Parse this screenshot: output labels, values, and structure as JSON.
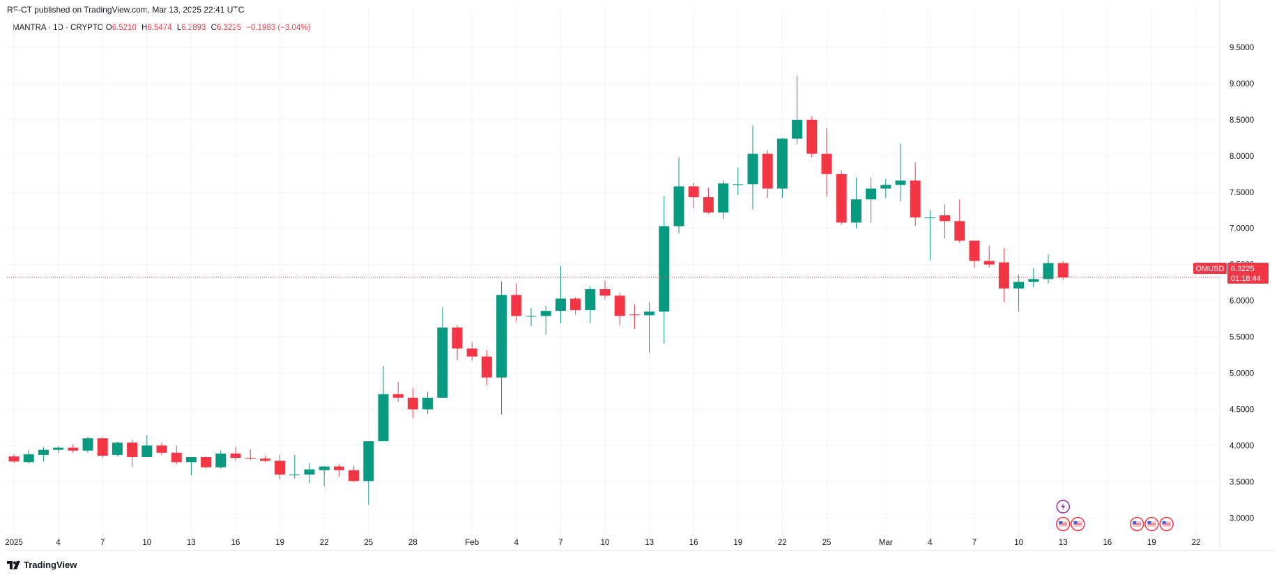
{
  "header": {
    "publisher_text": "RF-CT published on TradingView.com, Mar 13, 2025 22:41 UTC"
  },
  "legend": {
    "symbol_line": "MANTRA · 1D · CRYPTO",
    "open_label": "O",
    "open_value": "6.5210",
    "high_label": "H",
    "high_value": "6.5474",
    "low_label": "L",
    "low_value": "6.2893",
    "close_label": "C",
    "close_value": "6.3225",
    "change": "−0.1983 (−3.04%)"
  },
  "price_tag": {
    "symbol": "OMUSD",
    "price": "6.3225",
    "countdown": "01:18:44",
    "color": "#f23645"
  },
  "footer": {
    "brand": "TradingView"
  },
  "colors": {
    "up": "#089981",
    "down": "#f23645",
    "grid": "#f0f3fa"
  },
  "chart_data": {
    "type": "candlestick",
    "ylim": [
      2.55,
      9.75
    ],
    "y_ticks": [
      "3.0000",
      "3.5000",
      "4.0000",
      "4.5000",
      "5.0000",
      "5.5000",
      "6.0000",
      "6.5000",
      "7.0000",
      "7.5000",
      "8.0000",
      "8.5000",
      "9.0000",
      "9.5000"
    ],
    "x_tick_labels": [
      {
        "day": 0,
        "label": "2025"
      },
      {
        "day": 3,
        "label": "4"
      },
      {
        "day": 6,
        "label": "7"
      },
      {
        "day": 9,
        "label": "10"
      },
      {
        "day": 12,
        "label": "13"
      },
      {
        "day": 15,
        "label": "16"
      },
      {
        "day": 18,
        "label": "19"
      },
      {
        "day": 21,
        "label": "22"
      },
      {
        "day": 24,
        "label": "25"
      },
      {
        "day": 27,
        "label": "28"
      },
      {
        "day": 31,
        "label": "Feb"
      },
      {
        "day": 34,
        "label": "4"
      },
      {
        "day": 37,
        "label": "7"
      },
      {
        "day": 40,
        "label": "10"
      },
      {
        "day": 43,
        "label": "13"
      },
      {
        "day": 46,
        "label": "16"
      },
      {
        "day": 49,
        "label": "19"
      },
      {
        "day": 52,
        "label": "22"
      },
      {
        "day": 55,
        "label": "25"
      },
      {
        "day": 59,
        "label": "Mar"
      },
      {
        "day": 62,
        "label": "4"
      },
      {
        "day": 65,
        "label": "7"
      },
      {
        "day": 68,
        "label": "10"
      },
      {
        "day": 71,
        "label": "13"
      },
      {
        "day": 74,
        "label": "16"
      },
      {
        "day": 77,
        "label": "19"
      },
      {
        "day": 80,
        "label": "22"
      }
    ],
    "candles": [
      {
        "day": 0,
        "o": 3.85,
        "h": 3.88,
        "l": 3.76,
        "c": 3.78
      },
      {
        "day": 1,
        "o": 3.77,
        "h": 3.94,
        "l": 3.75,
        "c": 3.88
      },
      {
        "day": 2,
        "o": 3.87,
        "h": 3.98,
        "l": 3.78,
        "c": 3.94
      },
      {
        "day": 3,
        "o": 3.94,
        "h": 3.99,
        "l": 3.9,
        "c": 3.97
      },
      {
        "day": 4,
        "o": 3.97,
        "h": 4.02,
        "l": 3.9,
        "c": 3.93
      },
      {
        "day": 5,
        "o": 3.93,
        "h": 4.12,
        "l": 3.9,
        "c": 4.1
      },
      {
        "day": 6,
        "o": 4.1,
        "h": 4.12,
        "l": 3.83,
        "c": 3.86
      },
      {
        "day": 7,
        "o": 3.87,
        "h": 4.05,
        "l": 3.85,
        "c": 4.04
      },
      {
        "day": 8,
        "o": 4.04,
        "h": 4.08,
        "l": 3.7,
        "c": 3.84
      },
      {
        "day": 9,
        "o": 3.84,
        "h": 4.14,
        "l": 3.84,
        "c": 4.0
      },
      {
        "day": 10,
        "o": 4.0,
        "h": 4.04,
        "l": 3.87,
        "c": 3.9
      },
      {
        "day": 11,
        "o": 3.9,
        "h": 4.0,
        "l": 3.74,
        "c": 3.77
      },
      {
        "day": 12,
        "o": 3.77,
        "h": 3.84,
        "l": 3.59,
        "c": 3.84
      },
      {
        "day": 13,
        "o": 3.84,
        "h": 3.85,
        "l": 3.68,
        "c": 3.7
      },
      {
        "day": 14,
        "o": 3.7,
        "h": 3.93,
        "l": 3.68,
        "c": 3.89
      },
      {
        "day": 15,
        "o": 3.89,
        "h": 3.98,
        "l": 3.79,
        "c": 3.83
      },
      {
        "day": 16,
        "o": 3.83,
        "h": 3.95,
        "l": 3.8,
        "c": 3.82
      },
      {
        "day": 17,
        "o": 3.82,
        "h": 3.86,
        "l": 3.77,
        "c": 3.79
      },
      {
        "day": 18,
        "o": 3.79,
        "h": 3.87,
        "l": 3.53,
        "c": 3.6
      },
      {
        "day": 19,
        "o": 3.59,
        "h": 3.87,
        "l": 3.55,
        "c": 3.6
      },
      {
        "day": 20,
        "o": 3.6,
        "h": 3.76,
        "l": 3.48,
        "c": 3.67
      },
      {
        "day": 21,
        "o": 3.66,
        "h": 3.72,
        "l": 3.44,
        "c": 3.71
      },
      {
        "day": 22,
        "o": 3.71,
        "h": 3.74,
        "l": 3.57,
        "c": 3.66
      },
      {
        "day": 23,
        "o": 3.66,
        "h": 3.72,
        "l": 3.5,
        "c": 3.51
      },
      {
        "day": 24,
        "o": 3.51,
        "h": 4.06,
        "l": 3.18,
        "c": 4.06
      },
      {
        "day": 25,
        "o": 4.06,
        "h": 5.1,
        "l": 4.06,
        "c": 4.71
      },
      {
        "day": 26,
        "o": 4.71,
        "h": 4.88,
        "l": 4.6,
        "c": 4.66
      },
      {
        "day": 27,
        "o": 4.66,
        "h": 4.79,
        "l": 4.38,
        "c": 4.5
      },
      {
        "day": 28,
        "o": 4.5,
        "h": 4.74,
        "l": 4.44,
        "c": 4.66
      },
      {
        "day": 29,
        "o": 4.66,
        "h": 5.91,
        "l": 4.66,
        "c": 5.63
      },
      {
        "day": 30,
        "o": 5.63,
        "h": 5.66,
        "l": 5.18,
        "c": 5.34
      },
      {
        "day": 31,
        "o": 5.34,
        "h": 5.43,
        "l": 5.17,
        "c": 5.23
      },
      {
        "day": 32,
        "o": 5.23,
        "h": 5.32,
        "l": 4.83,
        "c": 4.94
      },
      {
        "day": 33,
        "o": 4.94,
        "h": 6.27,
        "l": 4.43,
        "c": 6.08
      },
      {
        "day": 34,
        "o": 6.08,
        "h": 6.24,
        "l": 5.71,
        "c": 5.79
      },
      {
        "day": 35,
        "o": 5.79,
        "h": 5.9,
        "l": 5.65,
        "c": 5.79
      },
      {
        "day": 36,
        "o": 5.79,
        "h": 5.93,
        "l": 5.53,
        "c": 5.86
      },
      {
        "day": 37,
        "o": 5.86,
        "h": 6.48,
        "l": 5.69,
        "c": 6.03
      },
      {
        "day": 38,
        "o": 6.03,
        "h": 6.05,
        "l": 5.81,
        "c": 5.87
      },
      {
        "day": 39,
        "o": 5.87,
        "h": 6.2,
        "l": 5.69,
        "c": 6.16
      },
      {
        "day": 40,
        "o": 6.16,
        "h": 6.28,
        "l": 6.02,
        "c": 6.07
      },
      {
        "day": 41,
        "o": 6.07,
        "h": 6.11,
        "l": 5.66,
        "c": 5.79
      },
      {
        "day": 42,
        "o": 5.81,
        "h": 5.95,
        "l": 5.61,
        "c": 5.8
      },
      {
        "day": 43,
        "o": 5.8,
        "h": 5.98,
        "l": 5.28,
        "c": 5.85
      },
      {
        "day": 44,
        "o": 5.85,
        "h": 7.45,
        "l": 5.41,
        "c": 7.03
      },
      {
        "day": 45,
        "o": 7.03,
        "h": 7.98,
        "l": 6.93,
        "c": 7.58
      },
      {
        "day": 46,
        "o": 7.58,
        "h": 7.63,
        "l": 7.28,
        "c": 7.43
      },
      {
        "day": 47,
        "o": 7.43,
        "h": 7.56,
        "l": 7.2,
        "c": 7.22
      },
      {
        "day": 48,
        "o": 7.22,
        "h": 7.66,
        "l": 7.13,
        "c": 7.62
      },
      {
        "day": 49,
        "o": 7.6,
        "h": 7.84,
        "l": 7.46,
        "c": 7.61
      },
      {
        "day": 50,
        "o": 7.61,
        "h": 8.42,
        "l": 7.26,
        "c": 8.03
      },
      {
        "day": 51,
        "o": 8.03,
        "h": 8.08,
        "l": 7.42,
        "c": 7.55
      },
      {
        "day": 52,
        "o": 7.55,
        "h": 8.25,
        "l": 7.42,
        "c": 8.24
      },
      {
        "day": 53,
        "o": 8.24,
        "h": 9.11,
        "l": 8.16,
        "c": 8.5
      },
      {
        "day": 54,
        "o": 8.5,
        "h": 8.55,
        "l": 7.98,
        "c": 8.03
      },
      {
        "day": 55,
        "o": 8.03,
        "h": 8.38,
        "l": 7.44,
        "c": 7.75
      },
      {
        "day": 56,
        "o": 7.75,
        "h": 7.8,
        "l": 7.05,
        "c": 7.08
      },
      {
        "day": 57,
        "o": 7.08,
        "h": 7.7,
        "l": 7.0,
        "c": 7.4
      },
      {
        "day": 58,
        "o": 7.4,
        "h": 7.7,
        "l": 7.08,
        "c": 7.55
      },
      {
        "day": 59,
        "o": 7.55,
        "h": 7.68,
        "l": 7.42,
        "c": 7.6
      },
      {
        "day": 60,
        "o": 7.6,
        "h": 8.17,
        "l": 7.37,
        "c": 7.66
      },
      {
        "day": 61,
        "o": 7.66,
        "h": 7.91,
        "l": 7.03,
        "c": 7.15
      },
      {
        "day": 62,
        "o": 7.15,
        "h": 7.25,
        "l": 6.56,
        "c": 7.15
      },
      {
        "day": 63,
        "o": 7.18,
        "h": 7.33,
        "l": 6.86,
        "c": 7.1
      },
      {
        "day": 64,
        "o": 7.1,
        "h": 7.4,
        "l": 6.8,
        "c": 6.83
      },
      {
        "day": 65,
        "o": 6.83,
        "h": 6.83,
        "l": 6.46,
        "c": 6.55
      },
      {
        "day": 66,
        "o": 6.55,
        "h": 6.76,
        "l": 6.46,
        "c": 6.5
      },
      {
        "day": 67,
        "o": 6.53,
        "h": 6.73,
        "l": 5.98,
        "c": 6.17
      },
      {
        "day": 68,
        "o": 6.17,
        "h": 6.36,
        "l": 5.85,
        "c": 6.26
      },
      {
        "day": 69,
        "o": 6.26,
        "h": 6.45,
        "l": 6.19,
        "c": 6.3
      },
      {
        "day": 70,
        "o": 6.3,
        "h": 6.64,
        "l": 6.24,
        "c": 6.52
      },
      {
        "day": 71,
        "o": 6.521,
        "h": 6.5474,
        "l": 6.2893,
        "c": 6.3225
      }
    ],
    "current_price": 6.3225,
    "events": [
      {
        "day": 71,
        "kind": "lightning",
        "row": 0
      },
      {
        "day": 71,
        "kind": "us-flag",
        "row": 1
      },
      {
        "day": 72,
        "kind": "us-flag",
        "row": 1
      },
      {
        "day": 76,
        "kind": "us-flag",
        "row": 1
      },
      {
        "day": 77,
        "kind": "us-flag",
        "row": 1
      },
      {
        "day": 78,
        "kind": "us-flag",
        "row": 1
      }
    ]
  }
}
